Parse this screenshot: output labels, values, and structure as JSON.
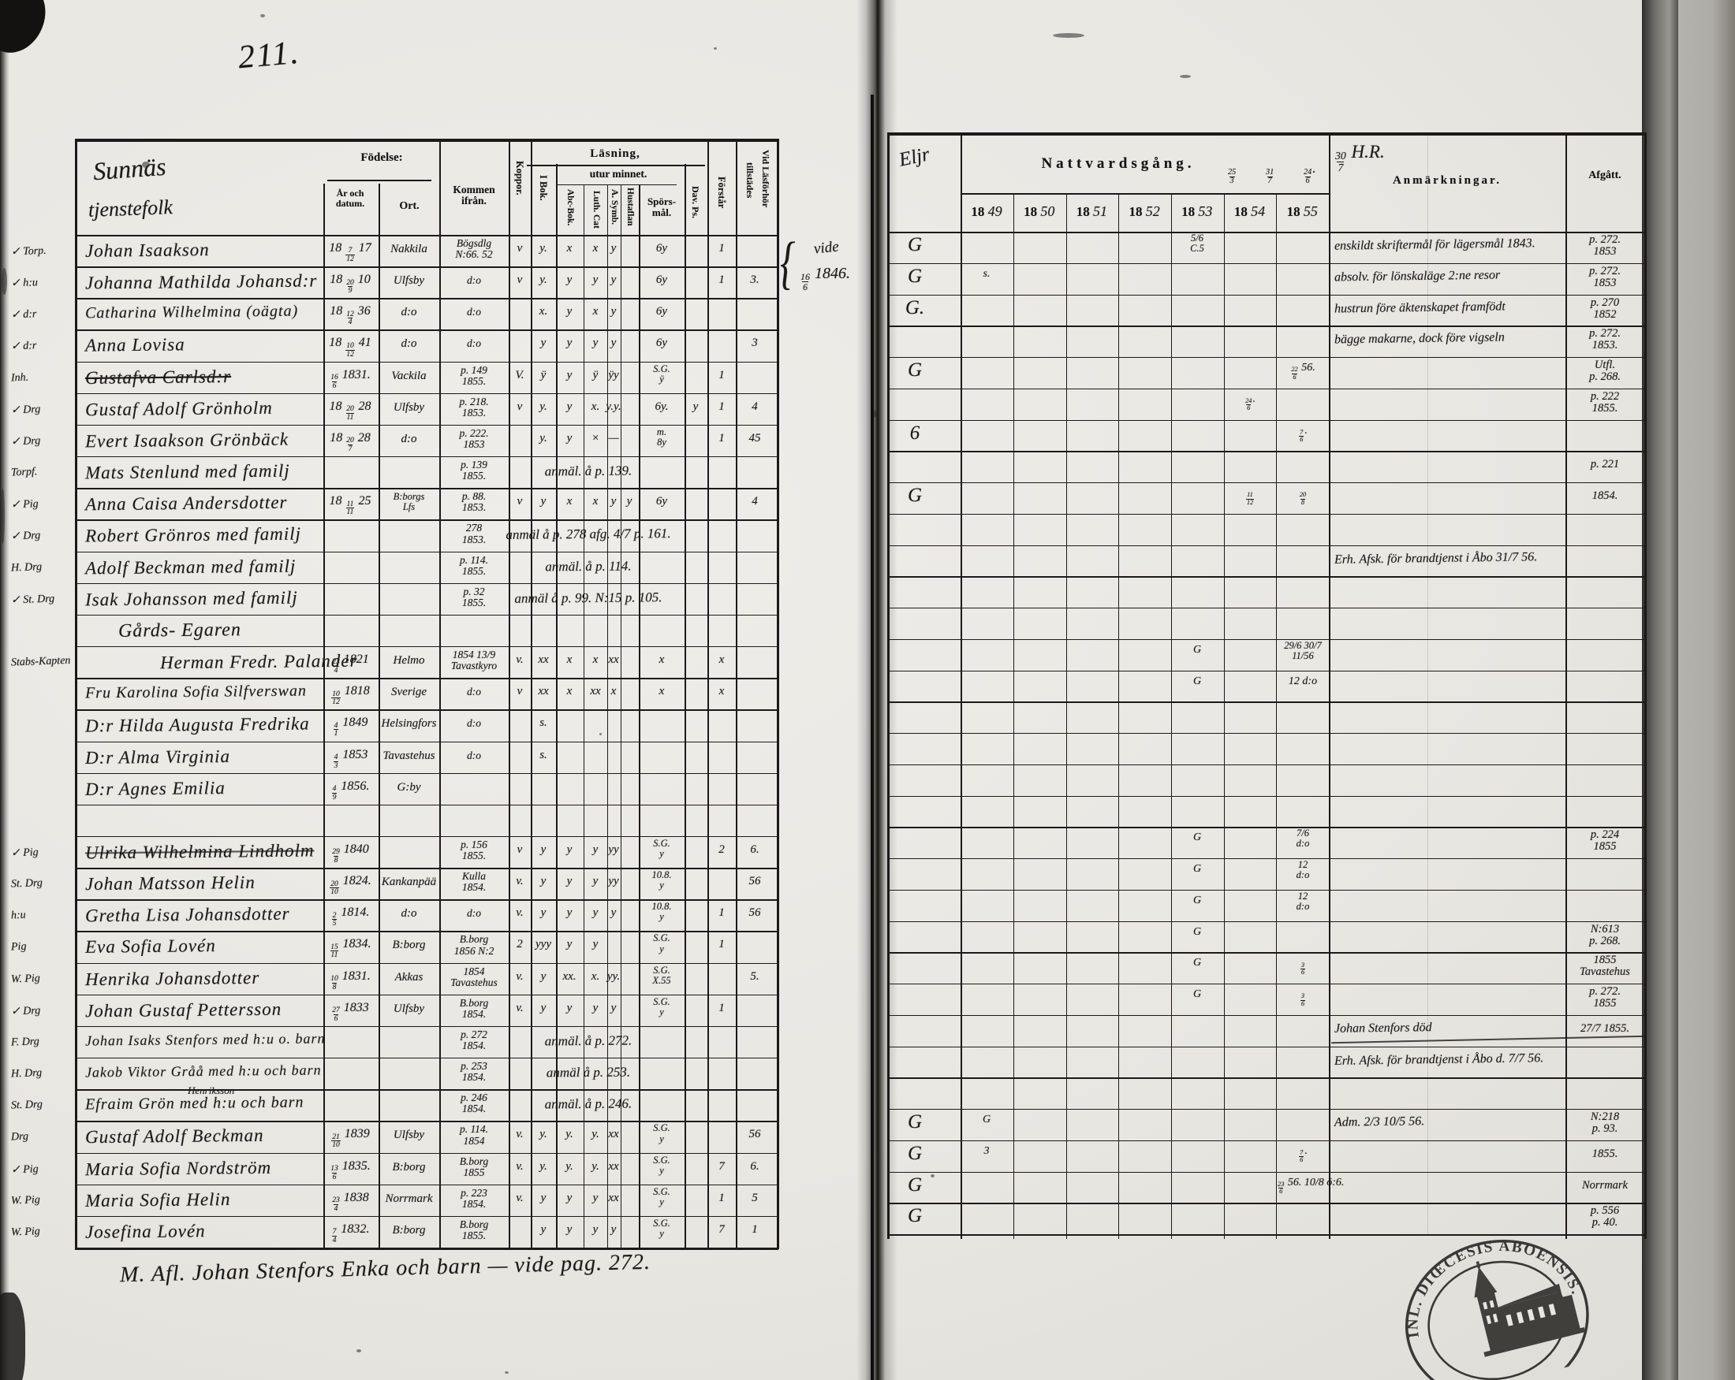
{
  "page": {
    "number": "211.",
    "bottom_note": "M. Afl. Johan Stenfors Enka och barn — vide pag. 272."
  },
  "left_header": {
    "title": "Sunnäs",
    "subtitle": "tjenstefolk",
    "fodelse": "Födelse:",
    "ar1": "År och",
    "ar2": "datum.",
    "ort": "Ort.",
    "kommen1": "Kommen",
    "kommen2": "ifrån.",
    "koppor": "Koppor.",
    "lasning": "Läsning,",
    "utur": "utur minnet.",
    "ibok": "I Bok.",
    "abc": "Abc-Bok.",
    "luth": "Luth. Cat",
    "symb": "A. Symb.",
    "hust": "Hustaflan",
    "spors1": "Spörs-",
    "spors2": "mål.",
    "davps": "Dav. Ps.",
    "forstar": "Förstår",
    "vid1": "Vid Läsförhör",
    "vid2": "tillstädes"
  },
  "right_header": {
    "eljr": "Eljr",
    "nattvardsgang": "Nattvardsgång.",
    "natt_marks": [
      "25/3",
      "31/7",
      "24/6."
    ],
    "hr_mark": "30/7 H.R.",
    "year_prefix": "18",
    "year_suffixes": [
      "49",
      "50",
      "51",
      "52",
      "53",
      "54",
      "55"
    ],
    "anmarkningar": "Anmärkningar.",
    "afgatt": "Afgått."
  },
  "side_note": {
    "brace": "{",
    "line1": "vide",
    "line2": "16/6 1846."
  },
  "stamp": {
    "arc_text": "INL. DIŒCESIS ABOENSIS. MAGN",
    "symbol": "church"
  },
  "rows": [
    {
      "m": "✓ Torp.",
      "n": "Johan Isaakson",
      "b": "18 7/12 17",
      "o": "Nakkila",
      "k": "Bögsdlg|N:66. 52",
      "c": {
        "koppor": "v",
        "ibok": "y.",
        "abc": "x",
        "luth": "x",
        "symb": "y",
        "spors": "6y",
        "forstar": "1"
      },
      "r": {
        "eljr": "G",
        "y53": "5/6|C.5",
        "anm": "enskildt skriftermål för lägersmål 1843.",
        "afg": "p. 272.|1853"
      }
    },
    {
      "m": "✓ h:u",
      "n": "Johanna Mathilda Johansd:r",
      "b": "18 20/9 10",
      "o": "Ulfsby",
      "k": "d:o",
      "c": {
        "koppor": "v",
        "ibok": "y.",
        "abc": "y",
        "luth": "y",
        "symb": "y",
        "spors": "6y",
        "forstar": "1",
        "tillst": "3."
      },
      "r": {
        "eljr": "G",
        "y49": "s.",
        "anm": "absolv. för lönskaläge 2:ne resor",
        "afg": "p. 272.|1853"
      }
    },
    {
      "m": "✓ d:r",
      "n": "Catharina Wilhelmina (oägta)",
      "b": "18 12/4 36",
      "o": "d:o",
      "k": "d:o",
      "c": {
        "ibok": "x.",
        "abc": "y",
        "luth": "x",
        "symb": "y",
        "spors": "6y"
      },
      "r": {
        "eljr": "G.",
        "anm": "hustrun före äktenskapet framfödt",
        "afg": "p. 270|1852"
      }
    },
    {
      "m": "✓ d:r",
      "n": "Anna Lovisa",
      "b": "18 10/12 41",
      "o": "d:o",
      "k": "d:o",
      "c": {
        "ibok": "y",
        "abc": "y",
        "luth": "y",
        "symb": "y",
        "spors": "6y",
        "tillst": "3"
      },
      "r": {
        "anm": "bägge makarne, dock före vigseln",
        "afg": "p. 272.|1853."
      }
    },
    {
      "m": "Inh.",
      "n": "Gustafva Carlsd:r",
      "strike": true,
      "b": "16/6 1831.",
      "o": "Vackila",
      "k": "p. 149|1855.",
      "c": {
        "koppor": "V.",
        "ibok": "ÿ",
        "abc": "y",
        "luth": "ÿ",
        "symb": "ÿy",
        "spors": "S.G.|ÿ",
        "forstar": "1"
      },
      "r": {
        "eljr": "G",
        "y55": "22/6 56.",
        "afg": "Utfl.|p. 268."
      }
    },
    {
      "m": "✓ Drg",
      "n": "Gustaf Adolf Grönholm",
      "b": "18 20/11 28",
      "o": "Ulfsby",
      "k": "p. 218.|1853.",
      "c": {
        "koppor": "v",
        "ibok": "y.",
        "abc": "y",
        "luth": "x.",
        "symb": "y.y.",
        "spors": "6y.",
        "davps": "y",
        "forstar": "1",
        "tillst": "4"
      },
      "r": {
        "y54": "24/6.",
        "afg": "p. 222|1855."
      }
    },
    {
      "m": "✓ Drg",
      "n": "Evert Isaakson Grönbäck",
      "b": "18 20/7 28",
      "o": "d:o",
      "k": "p. 222.|1853",
      "c": {
        "ibok": "y.",
        "abc": "y",
        "luth": "×",
        "symb": "—",
        "spors": "m.|8y",
        "forstar": "1",
        "tillst": "45"
      },
      "r": {
        "eljr": "6",
        "y55": "7/6."
      }
    },
    {
      "m": "Torpf.",
      "n": "Mats Stenlund med familj",
      "k": "p. 139|1855.",
      "note": "anmäl. å p. 139.",
      "r": {
        "afg": "p. 221"
      }
    },
    {
      "m": "✓ Pig",
      "n": "Anna Caisa Andersdotter",
      "b": "18 11/11 25",
      "o": "B:borgs|Lfs",
      "k": "p. 88.|1853.",
      "c": {
        "koppor": "v",
        "ibok": "y",
        "abc": "x",
        "luth": "x",
        "symb": "y",
        "hust": "y",
        "spors": "6y",
        "tillst": "4"
      },
      "r": {
        "eljr": "G",
        "y54": "11/12",
        "y55": "20/8",
        "afg": "1854."
      }
    },
    {
      "m": "✓ Drg",
      "n": "Robert Grönros med familj",
      "k": "278|1853.",
      "note": "anmäl å p. 278 afg. 4/7 p. 161."
    },
    {
      "m": "H. Drg",
      "n": "Adolf Beckman med familj",
      "k": "p. 114.|1855.",
      "note": "anmäl. å p. 114.",
      "r": {
        "anm": "Erh. Afsk. för brandtjenst i Åbo 31/7 56."
      }
    },
    {
      "m": "✓ St. Drg",
      "n": "Isak Johansson med familj",
      "k": "p. 32|1855.",
      "note": "anmäl å p. 99. N:15 p. 105."
    },
    {
      "heading": true,
      "n": "Gårds- Egaren"
    },
    {
      "m": "Stabs-Kapten",
      "indent": 95,
      "n": "Herman Fredr. Palander",
      "b": "23/4 1821",
      "o": "Helmo",
      "k": "1854 13/9|Tavastkyro",
      "c": {
        "koppor": "v.",
        "ibok": "xx",
        "abc": "x",
        "luth": "x",
        "symb": "xx",
        "spors": "x",
        "forstar": "x"
      },
      "r": {
        "y53": "G",
        "y55": "29/6 30/7|11/56"
      }
    },
    {
      "n": "Fru Karolina Sofia Silfverswan",
      "b": "10/12 1818",
      "o": "Sverige",
      "k": "d:o",
      "c": {
        "koppor": "v",
        "ibok": "xx",
        "abc": "x",
        "luth": "xx",
        "symb": "x",
        "spors": "x",
        "forstar": "x"
      },
      "r": {
        "y53": "G",
        "y55": "12 d:o"
      }
    },
    {
      "n": "D:r Hilda Augusta Fredrika",
      "b": "4/1 1849",
      "o": "Helsingfors",
      "k": "d:o",
      "c": {
        "ibok": "s."
      }
    },
    {
      "n": "D:r Alma Virginia",
      "b": "4/3 1853",
      "o": "Tavastehus",
      "k": "d:o",
      "c": {
        "ibok": "s."
      }
    },
    {
      "n": "D:r Agnes Emilia",
      "b": "4/9 1856.",
      "o": "G:by"
    },
    {},
    {
      "m": "✓ Pig",
      "n": "Ulrika Wilhelmina Lindholm",
      "strike": "light",
      "b": "29/8 1840",
      "k": "p. 156|1855.",
      "c": {
        "koppor": "v",
        "ibok": "y",
        "abc": "y",
        "luth": "y",
        "symb": "yy",
        "spors": "S.G.|y",
        "forstar": "2",
        "tillst": "6."
      },
      "r": {
        "y53": "G",
        "y55": "7/6|d:o",
        "afg": "p. 224|1855"
      }
    },
    {
      "m": "St. Drg",
      "n": "Johan Matsson Helin",
      "b": "20/10 1824.",
      "o": "Kankanpää",
      "k": "Kulla|1854.",
      "c": {
        "koppor": "v.",
        "ibok": "y",
        "abc": "y",
        "luth": "y",
        "symb": "yy",
        "spors": "10.8.|y",
        "tillst": "56"
      },
      "r": {
        "y53": "G",
        "y55": "12|d:o"
      }
    },
    {
      "m": "h:u",
      "n": "Gretha Lisa Johansdotter",
      "b": "2/5 1814.",
      "o": "d:o",
      "k": "d:o",
      "c": {
        "koppor": "v.",
        "ibok": "y",
        "abc": "y",
        "luth": "y",
        "symb": "y",
        "spors": "10.8.|y",
        "forstar": "1",
        "tillst": "56"
      },
      "r": {
        "y53": "G",
        "y55": "12|d:o"
      }
    },
    {
      "m": "Pig",
      "n": "Eva Sofia Lovén",
      "b": "15/11 1834.",
      "o": "B:borg",
      "k": "B.borg|1856 N:2",
      "c": {
        "koppor": "2",
        "ibok": "yyy",
        "abc": "y",
        "luth": "y",
        "spors": "S.G.|y",
        "forstar": "1"
      },
      "r": {
        "y53": "G",
        "afg": "N:613|p. 268."
      }
    },
    {
      "m": "W. Pig",
      "n": "Henrika Johansdotter",
      "b": "10/8 1831.",
      "o": "Akkas",
      "k": "1854|Tavastehus",
      "c": {
        "koppor": "v.",
        "ibok": "y",
        "abc": "xx.",
        "luth": "x.",
        "symb": "yy.",
        "spors": "S.G.|X.55",
        "tillst": "5."
      },
      "r": {
        "y53": "G",
        "y55": "3/6",
        "afg": "1855|Tavastehus"
      }
    },
    {
      "m": "✓ Drg",
      "n": "Johan Gustaf Pettersson",
      "b": "27/6 1833",
      "o": "Ulfsby",
      "k": "B.borg|1854.",
      "c": {
        "koppor": "v.",
        "ibok": "y",
        "abc": "y",
        "luth": "y",
        "symb": "y",
        "spors": "S.G.|y",
        "forstar": "1"
      },
      "r": {
        "y53": "G",
        "y55": "3/6",
        "afg": "p. 272.|1855"
      }
    },
    {
      "m": "F. Drg",
      "n": "Johan Isaks Stenfors med h:u o. barn",
      "k": "p. 272|1854.",
      "note": "anmäl. å p. 272.",
      "r": {
        "anm": "Johan Stenfors död",
        "afg": "27/7 1855."
      }
    },
    {
      "m": "H. Drg",
      "n": "Jakob Viktor Gråå med h:u och barn",
      "k": "p. 253|1854.",
      "note": "anmäl å p. 253.",
      "r": {
        "anm": "Erh. Afsk. för brandtjenst i Åbo d. 7/7 56."
      }
    },
    {
      "m": "St. Drg",
      "n": "Efraim Grön med h:u och barn",
      "sup": "Henriksson",
      "k": "p. 246|1854.",
      "note": "anmäl. å p. 246."
    },
    {
      "m": "Drg",
      "n": "Gustaf Adolf Beckman",
      "b": "21/10 1839",
      "o": "Ulfsby",
      "k": "p. 114.|1854",
      "c": {
        "koppor": "v.",
        "ibok": "y.",
        "abc": "y.",
        "luth": "y.",
        "symb": "xx",
        "spors": "S.G.|y",
        "tillst": "56"
      },
      "r": {
        "eljr": "G",
        "y49": "G",
        "anm": "Adm. 2/3 10/5 56.",
        "afg": "N:218|p. 93."
      }
    },
    {
      "m": "✓ Pig",
      "n": "Maria Sofia Nordström",
      "b": "13/6 1835.",
      "o": "B:borg",
      "k": "B.borg|1855",
      "c": {
        "koppor": "v.",
        "ibok": "y.",
        "abc": "y.",
        "luth": "y.",
        "symb": "xx",
        "spors": "S.G.|y",
        "forstar": "7",
        "tillst": "6."
      },
      "r": {
        "eljr": "G",
        "y49": "3",
        "y55": "7/6.",
        "afg": "1855."
      }
    },
    {
      "m": "W. Pig",
      "n": "Maria Sofia Helin",
      "b": "23/4 1838",
      "o": "Norrmark",
      "k": "p. 223|1854.",
      "c": {
        "koppor": "v.",
        "ibok": "y",
        "abc": "y",
        "luth": "y",
        "symb": "xx",
        "spors": "S.G.|y",
        "forstar": "1",
        "tillst": "5"
      },
      "r": {
        "eljr": "G",
        "y55": "23/6 56. 10/8 ö:6.",
        "afg": "Norrmark"
      }
    },
    {
      "m": "W. Pig",
      "n": "Josefina Lovén",
      "b": "7/4 1832.",
      "o": "B:borg",
      "k": "B.borg|1855.",
      "c": {
        "ibok": "y",
        "abc": "y",
        "luth": "y",
        "symb": "y",
        "spors": "S.G.|y",
        "forstar": "7",
        "tillst": "1"
      },
      "r": {
        "eljr": "G",
        "afg": "p. 556|p. 40."
      }
    }
  ]
}
